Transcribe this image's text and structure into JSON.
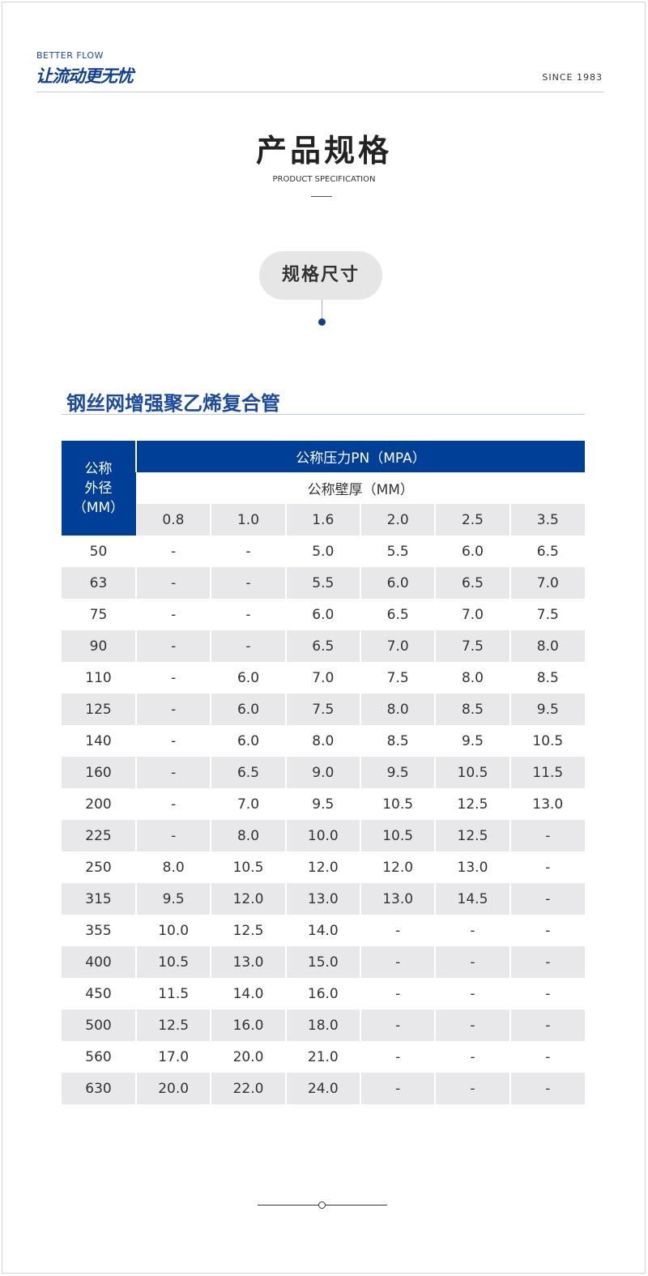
{
  "header": {
    "brand_en": "BETTER FLOW",
    "brand_cn": "让流动更无忧",
    "since": "SINCE 1983"
  },
  "page": {
    "title": "产品规格",
    "subtitle": "PRODUCT SPECIFICATION",
    "pill": "规格尺寸",
    "section": "钢丝网增强聚乙烯复合管"
  },
  "colors": {
    "accent": "#003f98",
    "row_alt": "#e8e8ea"
  },
  "table": {
    "corner": [
      "公称",
      "外径",
      "（MM）"
    ],
    "pressure_header": "公称压力PN（MPA）",
    "thickness_header": "公称壁厚（MM）",
    "pressures": [
      "0.8",
      "1.0",
      "1.6",
      "2.0",
      "2.5",
      "3.5"
    ],
    "rows": [
      [
        "50",
        "-",
        "-",
        "5.0",
        "5.5",
        "6.0",
        "6.5"
      ],
      [
        "63",
        "-",
        "-",
        "5.5",
        "6.0",
        "6.5",
        "7.0"
      ],
      [
        "75",
        "-",
        "-",
        "6.0",
        "6.5",
        "7.0",
        "7.5"
      ],
      [
        "90",
        "-",
        "-",
        "6.5",
        "7.0",
        "7.5",
        "8.0"
      ],
      [
        "110",
        "-",
        "6.0",
        "7.0",
        "7.5",
        "8.0",
        "8.5"
      ],
      [
        "125",
        "-",
        "6.0",
        "7.5",
        "8.0",
        "8.5",
        "9.5"
      ],
      [
        "140",
        "-",
        "6.0",
        "8.0",
        "8.5",
        "9.5",
        "10.5"
      ],
      [
        "160",
        "-",
        "6.5",
        "9.0",
        "9.5",
        "10.5",
        "11.5"
      ],
      [
        "200",
        "-",
        "7.0",
        "9.5",
        "10.5",
        "12.5",
        "13.0"
      ],
      [
        "225",
        "-",
        "8.0",
        "10.0",
        "10.5",
        "12.5",
        "-"
      ],
      [
        "250",
        "8.0",
        "10.5",
        "12.0",
        "12.0",
        "13.0",
        "-"
      ],
      [
        "315",
        "9.5",
        "12.0",
        "13.0",
        "13.0",
        "14.5",
        "-"
      ],
      [
        "355",
        "10.0",
        "12.5",
        "14.0",
        "-",
        "-",
        "-"
      ],
      [
        "400",
        "10.5",
        "13.0",
        "15.0",
        "-",
        "-",
        "-"
      ],
      [
        "450",
        "11.5",
        "14.0",
        "16.0",
        "-",
        "-",
        "-"
      ],
      [
        "500",
        "12.5",
        "16.0",
        "18.0",
        "-",
        "-",
        "-"
      ],
      [
        "560",
        "17.0",
        "20.0",
        "21.0",
        "-",
        "-",
        "-"
      ],
      [
        "630",
        "20.0",
        "22.0",
        "24.0",
        "-",
        "-",
        "-"
      ]
    ]
  }
}
